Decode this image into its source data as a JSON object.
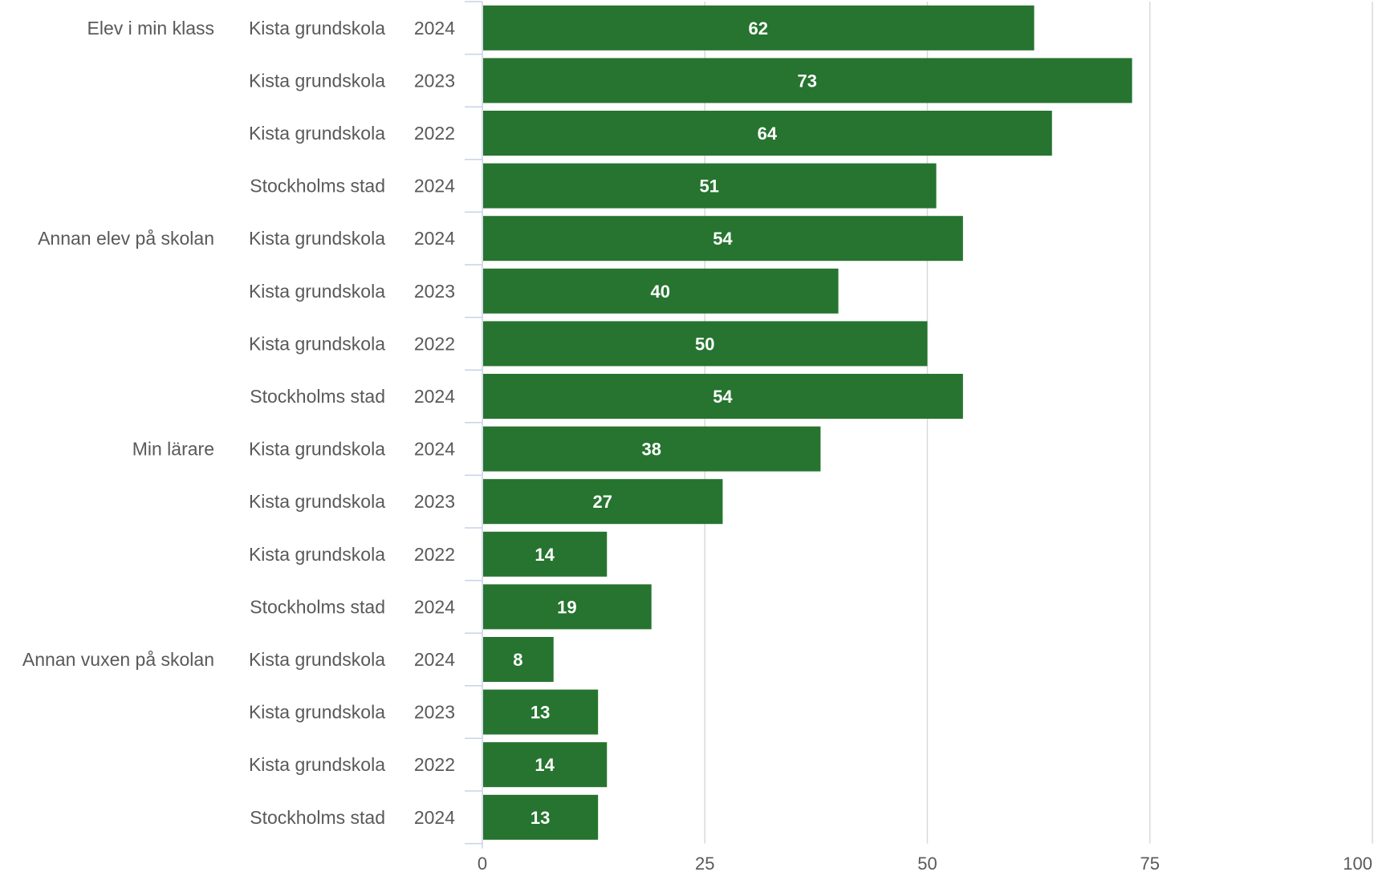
{
  "chart_data": {
    "type": "bar",
    "orientation": "horizontal",
    "title": "",
    "xlabel": "",
    "ylabel": "",
    "xlim": [
      0,
      100
    ],
    "x_ticks": [
      "0",
      "25",
      "50",
      "75",
      "100"
    ],
    "grid": true,
    "bar_color": "#26742F",
    "grid_color": "#D9D9D9",
    "label_color": "#595959",
    "categories": [
      {
        "group": "Elev i min klass",
        "school": "Kista grundskola",
        "year": "2024",
        "value": 62,
        "label": "62"
      },
      {
        "group": "",
        "school": "Kista grundskola",
        "year": "2023",
        "value": 73,
        "label": "73"
      },
      {
        "group": "",
        "school": "Kista grundskola",
        "year": "2022",
        "value": 64,
        "label": "64"
      },
      {
        "group": "",
        "school": "Stockholms stad",
        "year": "2024",
        "value": 51,
        "label": "51"
      },
      {
        "group": "Annan elev på skolan",
        "school": "Kista grundskola",
        "year": "2024",
        "value": 54,
        "label": "54"
      },
      {
        "group": "",
        "school": "Kista grundskola",
        "year": "2023",
        "value": 40,
        "label": "40"
      },
      {
        "group": "",
        "school": "Kista grundskola",
        "year": "2022",
        "value": 50,
        "label": "50"
      },
      {
        "group": "",
        "school": "Stockholms stad",
        "year": "2024",
        "value": 54,
        "label": "54"
      },
      {
        "group": "Min lärare",
        "school": "Kista grundskola",
        "year": "2024",
        "value": 38,
        "label": "38"
      },
      {
        "group": "",
        "school": "Kista grundskola",
        "year": "2023",
        "value": 27,
        "label": "27"
      },
      {
        "group": "",
        "school": "Kista grundskola",
        "year": "2022",
        "value": 14,
        "label": "14"
      },
      {
        "group": "",
        "school": "Stockholms stad",
        "year": "2024",
        "value": 19,
        "label": "19"
      },
      {
        "group": "Annan vuxen på skolan",
        "school": "Kista grundskola",
        "year": "2024",
        "value": 8,
        "label": "8"
      },
      {
        "group": "",
        "school": "Kista grundskola",
        "year": "2023",
        "value": 13,
        "label": "13"
      },
      {
        "group": "",
        "school": "Kista grundskola",
        "year": "2022",
        "value": 14,
        "label": "14"
      },
      {
        "group": "",
        "school": "Stockholms stad",
        "year": "2024",
        "value": 13,
        "label": "13"
      }
    ]
  }
}
